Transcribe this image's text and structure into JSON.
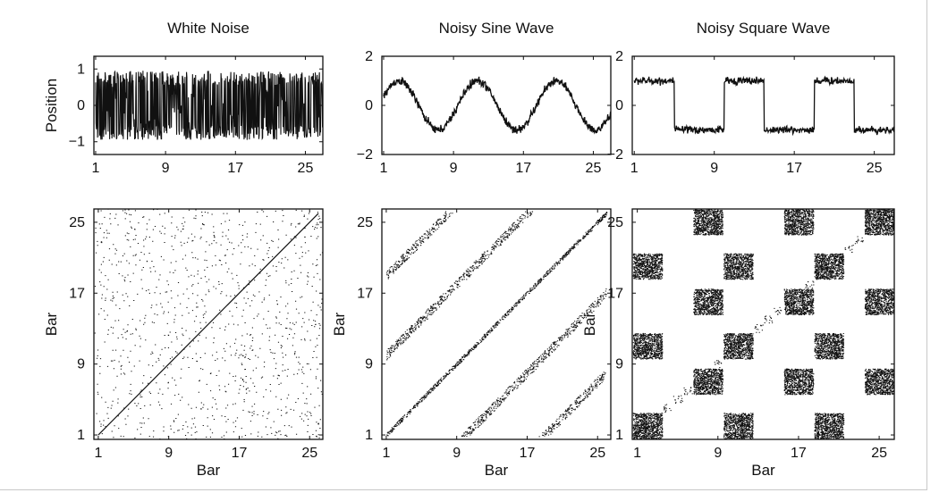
{
  "chart_data": [
    {
      "type": "line",
      "title": "White Noise",
      "xlabel": "",
      "ylabel": "Position",
      "xlim": [
        0.8,
        27
      ],
      "ylim": [
        -1.35,
        1.35
      ],
      "xticks": [
        1,
        9,
        17,
        25
      ],
      "yticks": [
        -1,
        0,
        1
      ],
      "signal": "white-noise",
      "samples_per_bar": 16,
      "x": [
        1,
        27
      ],
      "y_range": [
        -0.95,
        0.95
      ],
      "color": "#111111"
    },
    {
      "type": "line",
      "title": "Noisy Sine Wave",
      "xlabel": "",
      "ylabel": "",
      "xlim": [
        0.8,
        27
      ],
      "ylim": [
        -2,
        2
      ],
      "xticks": [
        1,
        9,
        17,
        25
      ],
      "yticks": [
        -2,
        0,
        2
      ],
      "signal": "noisy-sine",
      "period_bars": 9,
      "amplitude": 1,
      "noise": 0.12,
      "x": [
        1,
        27
      ],
      "color": "#111111"
    },
    {
      "type": "line",
      "title": "Noisy Square Wave",
      "xlabel": "",
      "ylabel": "",
      "xlim": [
        0.8,
        27
      ],
      "ylim": [
        -2,
        2
      ],
      "xticks": [
        1,
        9,
        17,
        25
      ],
      "yticks": [
        -2,
        0,
        2
      ],
      "signal": "noisy-square",
      "period_bars": 9,
      "high_segments": [
        [
          1,
          5
        ],
        [
          10,
          14
        ],
        [
          19,
          23
        ]
      ],
      "amplitude": 1,
      "noise": 0.12,
      "x": [
        1,
        27
      ],
      "color": "#111111"
    },
    {
      "type": "scatter",
      "title": "",
      "xlabel": "Bar",
      "ylabel": "Bar",
      "xlim": [
        0.5,
        26.5
      ],
      "ylim": [
        0.5,
        26.5
      ],
      "xticks": [
        1,
        9,
        17,
        25
      ],
      "yticks": [
        1,
        9,
        17,
        25
      ],
      "pattern": "recurrence-white-noise",
      "diagonal": [
        [
          1,
          1
        ],
        [
          26,
          26
        ]
      ],
      "random_points": 1100,
      "color": "#111111"
    },
    {
      "type": "scatter",
      "title": "",
      "xlabel": "Bar",
      "ylabel": "Bar",
      "xlim": [
        0.5,
        26.5
      ],
      "ylim": [
        0.5,
        26.5
      ],
      "xticks": [
        1,
        9,
        17,
        25
      ],
      "yticks": [
        1,
        9,
        17,
        25
      ],
      "pattern": "recurrence-sine",
      "diagonal_offsets": [
        -18,
        -9,
        0,
        9,
        18
      ],
      "color": "#111111"
    },
    {
      "type": "scatter",
      "title": "",
      "xlabel": "Bar",
      "ylabel": "Bar",
      "xlim": [
        0.5,
        26.5
      ],
      "ylim": [
        0.5,
        26.5
      ],
      "xticks": [
        1,
        9,
        17,
        25
      ],
      "yticks": [
        1,
        9,
        17,
        25
      ],
      "pattern": "recurrence-square",
      "blocks": [
        [
          1,
          5
        ],
        [
          10,
          14
        ],
        [
          19,
          23
        ],
        [
          6,
          8
        ],
        [
          15,
          17
        ],
        [
          24,
          26
        ]
      ],
      "color": "#111111"
    }
  ]
}
